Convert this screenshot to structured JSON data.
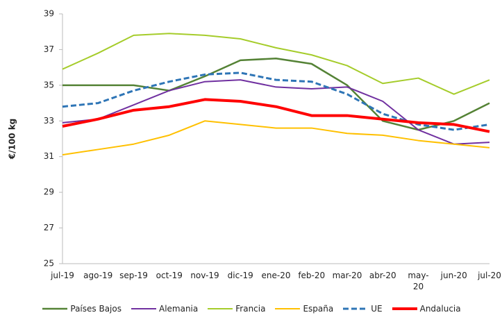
{
  "chart_data": {
    "type": "line",
    "y_label": "€/100 kg",
    "categories": [
      "jul-19",
      "ago-19",
      "sep-19",
      "oct-19",
      "nov-19",
      "dic-19",
      "ene-20",
      "feb-20",
      "mar-20",
      "abr-20",
      "may-\n20",
      "jun-20",
      "jul-20"
    ],
    "ylim": [
      25,
      39
    ],
    "yticks": [
      25,
      27,
      29,
      31,
      33,
      35,
      37,
      39
    ],
    "grid": false,
    "legend": "bottom",
    "series": [
      {
        "name": "Países Bajos",
        "color": "#548235",
        "width": 2.5,
        "dashed": false,
        "values": [
          35,
          35,
          35,
          34.7,
          35.5,
          36.4,
          36.5,
          36.2,
          35,
          33,
          32.5,
          33,
          34
        ]
      },
      {
        "name": "Alemania",
        "color": "#7030a0",
        "width": 2,
        "dashed": false,
        "values": [
          32.9,
          33.1,
          33.9,
          34.7,
          35.2,
          35.3,
          34.9,
          34.8,
          34.9,
          34.1,
          32.5,
          31.7,
          31.8
        ]
      },
      {
        "name": "Francia",
        "color": "#a5cc2a",
        "width": 2,
        "dashed": false,
        "values": [
          35.9,
          36.8,
          37.8,
          37.9,
          37.8,
          37.6,
          37.1,
          36.7,
          36.1,
          35.1,
          35.4,
          34.5,
          35.3
        ]
      },
      {
        "name": "España",
        "color": "#ffc000",
        "width": 2,
        "dashed": false,
        "values": [
          31.1,
          31.4,
          31.7,
          32.2,
          33.0,
          32.8,
          32.6,
          32.6,
          32.3,
          32.2,
          31.9,
          31.7,
          31.5
        ]
      },
      {
        "name": "UE",
        "color": "#2e75b6",
        "width": 3,
        "dashed": true,
        "values": [
          33.8,
          34.0,
          34.7,
          35.2,
          35.6,
          35.7,
          35.3,
          35.2,
          34.5,
          33.4,
          32.8,
          32.5,
          32.8
        ]
      },
      {
        "name": "Andalucia",
        "color": "#ff0000",
        "width": 4,
        "dashed": false,
        "values": [
          32.7,
          33.1,
          33.6,
          33.8,
          34.2,
          34.1,
          33.8,
          33.3,
          33.3,
          33.1,
          32.9,
          32.8,
          32.4
        ]
      }
    ]
  }
}
